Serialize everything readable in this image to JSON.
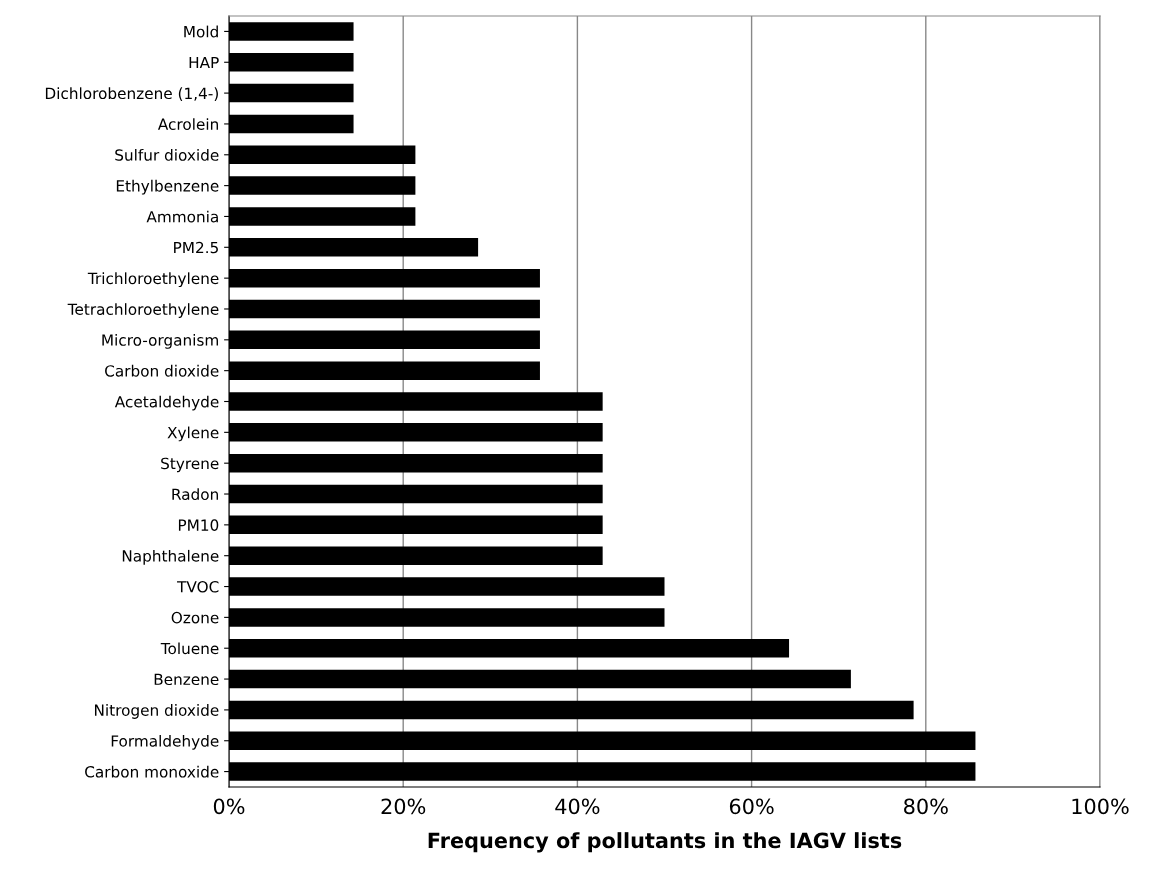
{
  "chart_data": {
    "type": "bar",
    "orientation": "horizontal",
    "xlabel": "Frequency of pollutants in the IAGV lists",
    "categories": [
      "Mold",
      "HAP",
      "Dichlorobenzene (1,4-)",
      "Acrolein",
      "Sulfur dioxide",
      "Ethylbenzene",
      "Ammonia",
      "PM2.5",
      "Trichloroethylene",
      "Tetrachloroethylene",
      "Micro-organism",
      "Carbon dioxide",
      "Acetaldehyde",
      "Xylene",
      "Styrene",
      "Radon",
      "PM10",
      "Naphthalene",
      "TVOC",
      "Ozone",
      "Toluene",
      "Benzene",
      "Nitrogen dioxide",
      "Formaldehyde",
      "Carbon monoxide"
    ],
    "values": [
      14.3,
      14.3,
      14.3,
      14.3,
      21.4,
      21.4,
      21.4,
      28.6,
      35.7,
      35.7,
      35.7,
      35.7,
      42.9,
      42.9,
      42.9,
      42.9,
      42.9,
      42.9,
      50,
      50,
      64.3,
      71.4,
      78.6,
      85.7,
      85.7
    ],
    "color": "#000000",
    "xlim": [
      0,
      100
    ],
    "xticks": [
      {
        "value": 0,
        "label": "0%"
      },
      {
        "value": 20,
        "label": "20%"
      },
      {
        "value": 40,
        "label": "40%"
      },
      {
        "value": 60,
        "label": "60%"
      },
      {
        "value": 80,
        "label": "80%"
      },
      {
        "value": 100,
        "label": "100%"
      }
    ],
    "grid": "x"
  }
}
